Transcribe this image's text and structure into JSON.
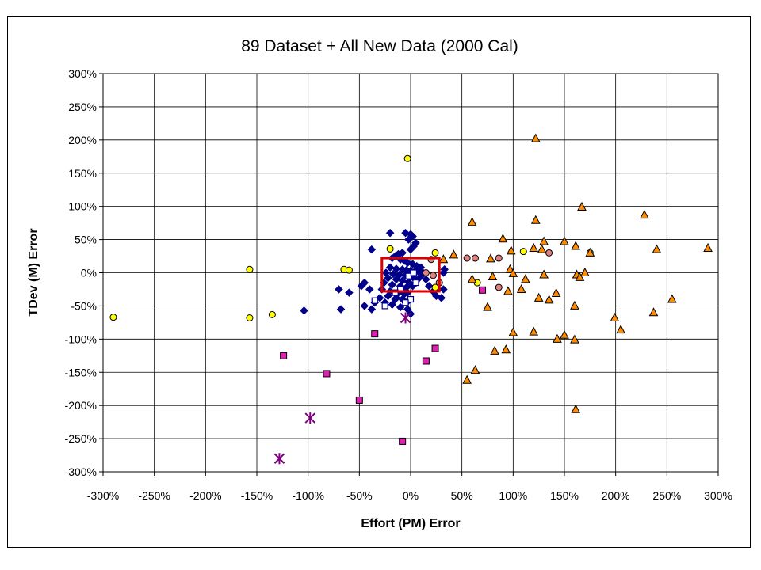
{
  "chart_data": {
    "type": "scatter",
    "title": "89 Dataset + All New Data (2000 Cal)",
    "xlabel": "Effort (PM) Error",
    "ylabel": "TDev (M) Error",
    "xlim": [
      -300,
      300
    ],
    "ylim": [
      -300,
      300
    ],
    "x_ticks": [
      "-300%",
      "-250%",
      "-200%",
      "-150%",
      "-100%",
      "-50%",
      "0%",
      "50%",
      "100%",
      "150%",
      "200%",
      "250%",
      "300%"
    ],
    "y_ticks": [
      "300%",
      "250%",
      "200%",
      "150%",
      "100%",
      "50%",
      "0%",
      "-50%",
      "-100%",
      "-150%",
      "-200%",
      "-250%",
      "-300%"
    ],
    "grid": true,
    "legend": "none",
    "highlight_box": {
      "x": [
        -28,
        28
      ],
      "y": [
        -28,
        22
      ],
      "color": "#dd0000"
    },
    "series": [
      {
        "marker": "diamond",
        "color": "#00008b",
        "points": [
          [
            -5,
            60
          ],
          [
            2,
            55
          ],
          [
            -2,
            50
          ],
          [
            5,
            45
          ],
          [
            3,
            40
          ],
          [
            0,
            35
          ],
          [
            -8,
            30
          ],
          [
            -12,
            28
          ],
          [
            -15,
            25
          ],
          [
            -18,
            22
          ],
          [
            -10,
            20
          ],
          [
            -6,
            18
          ],
          [
            -3,
            15
          ],
          [
            2,
            13
          ],
          [
            6,
            10
          ],
          [
            10,
            8
          ],
          [
            -20,
            8
          ],
          [
            -14,
            6
          ],
          [
            -8,
            5
          ],
          [
            -4,
            4
          ],
          [
            0,
            3
          ],
          [
            4,
            2
          ],
          [
            8,
            1
          ],
          [
            12,
            0
          ],
          [
            -24,
            0
          ],
          [
            -17,
            -2
          ],
          [
            -11,
            -3
          ],
          [
            -5,
            -4
          ],
          [
            -1,
            -6
          ],
          [
            3,
            -8
          ],
          [
            7,
            -10
          ],
          [
            -22,
            -8
          ],
          [
            -14,
            -10
          ],
          [
            -8,
            -12
          ],
          [
            -2,
            -14
          ],
          [
            5,
            -15
          ],
          [
            -26,
            -15
          ],
          [
            -18,
            -18
          ],
          [
            -10,
            -20
          ],
          [
            -4,
            -22
          ],
          [
            2,
            -20
          ],
          [
            -20,
            -28
          ],
          [
            -12,
            -30
          ],
          [
            -6,
            -32
          ],
          [
            -28,
            -25
          ],
          [
            -22,
            -35
          ],
          [
            -14,
            -38
          ],
          [
            -8,
            -40
          ],
          [
            -2,
            -42
          ],
          [
            -30,
            -38
          ],
          [
            -25,
            -45
          ],
          [
            -18,
            -48
          ],
          [
            -10,
            -52
          ],
          [
            -3,
            -55
          ],
          [
            0,
            -62
          ],
          [
            -15,
            -40
          ],
          [
            -9,
            -25
          ],
          [
            -3,
            -30
          ],
          [
            10,
            -5
          ],
          [
            15,
            -10
          ],
          [
            18,
            -20
          ],
          [
            22,
            -28
          ],
          [
            25,
            -35
          ],
          [
            30,
            -38
          ],
          [
            32,
            -25
          ],
          [
            32,
            0
          ],
          [
            33,
            5
          ],
          [
            -38,
            35
          ],
          [
            -45,
            -15
          ],
          [
            -48,
            -20
          ],
          [
            -40,
            -25
          ],
          [
            -38,
            -55
          ],
          [
            -60,
            -30
          ],
          [
            -70,
            -25
          ],
          [
            -68,
            -55
          ],
          [
            -104,
            -57
          ],
          [
            -20,
            60
          ],
          [
            0,
            58
          ],
          [
            -35,
            -45
          ],
          [
            -45,
            -50
          ]
        ]
      },
      {
        "marker": "square-open",
        "color": "#00008b",
        "points": [
          [
            -35,
            -42
          ],
          [
            -25,
            -50
          ],
          [
            0,
            -40
          ],
          [
            -5,
            -45
          ],
          [
            -10,
            -25
          ],
          [
            -15,
            -30
          ],
          [
            5,
            -15
          ],
          [
            -2,
            -5
          ],
          [
            3,
            0
          ]
        ]
      },
      {
        "marker": "circle",
        "color": "#ffff00",
        "points": [
          [
            -3,
            172
          ],
          [
            -157,
            5
          ],
          [
            -157,
            -68
          ],
          [
            -135,
            -63
          ],
          [
            -290,
            -67
          ],
          [
            -65,
            5
          ],
          [
            -60,
            4
          ],
          [
            -20,
            36
          ],
          [
            24,
            30
          ],
          [
            24,
            -22
          ],
          [
            65,
            -15
          ],
          [
            110,
            32
          ],
          [
            175,
            30
          ]
        ]
      },
      {
        "marker": "circle",
        "color": "#e08080",
        "points": [
          [
            20,
            20
          ],
          [
            15,
            0
          ],
          [
            22,
            -4
          ],
          [
            28,
            -15
          ],
          [
            55,
            22
          ],
          [
            63,
            22
          ],
          [
            86,
            22
          ],
          [
            86,
            -22
          ],
          [
            135,
            30
          ]
        ]
      },
      {
        "marker": "triangle",
        "color": "#ff8c00",
        "points": [
          [
            122,
            202
          ],
          [
            167,
            99
          ],
          [
            228,
            87
          ],
          [
            60,
            76
          ],
          [
            122,
            79
          ],
          [
            90,
            51
          ],
          [
            130,
            47
          ],
          [
            150,
            47
          ],
          [
            161,
            40
          ],
          [
            175,
            30
          ],
          [
            240,
            35
          ],
          [
            290,
            37
          ],
          [
            42,
            27
          ],
          [
            78,
            21
          ],
          [
            98,
            33
          ],
          [
            120,
            37
          ],
          [
            128,
            35
          ],
          [
            97,
            5
          ],
          [
            100,
            -1
          ],
          [
            112,
            -10
          ],
          [
            130,
            -3
          ],
          [
            162,
            -3
          ],
          [
            165,
            -7
          ],
          [
            170,
            0
          ],
          [
            60,
            -10
          ],
          [
            80,
            -6
          ],
          [
            95,
            -28
          ],
          [
            108,
            -25
          ],
          [
            125,
            -38
          ],
          [
            135,
            -41
          ],
          [
            142,
            -31
          ],
          [
            160,
            -50
          ],
          [
            75,
            -52
          ],
          [
            199,
            -68
          ],
          [
            205,
            -86
          ],
          [
            237,
            -60
          ],
          [
            255,
            -40
          ],
          [
            100,
            -90
          ],
          [
            143,
            -100
          ],
          [
            150,
            -94
          ],
          [
            160,
            -101
          ],
          [
            120,
            -89
          ],
          [
            82,
            -118
          ],
          [
            93,
            -116
          ],
          [
            63,
            -147
          ],
          [
            55,
            -162
          ],
          [
            161,
            -206
          ],
          [
            32,
            20
          ]
        ]
      },
      {
        "marker": "square",
        "color": "#e020b0",
        "points": [
          [
            -124,
            -125
          ],
          [
            -82,
            -152
          ],
          [
            -50,
            -192
          ],
          [
            -35,
            -92
          ],
          [
            -8,
            -254
          ],
          [
            15,
            -133
          ],
          [
            24,
            -114
          ],
          [
            70,
            -26
          ]
        ]
      },
      {
        "marker": "star",
        "color": "#800080",
        "points": [
          [
            -98,
            -219
          ],
          [
            -128,
            -280
          ],
          [
            -5,
            -68
          ]
        ]
      }
    ]
  }
}
